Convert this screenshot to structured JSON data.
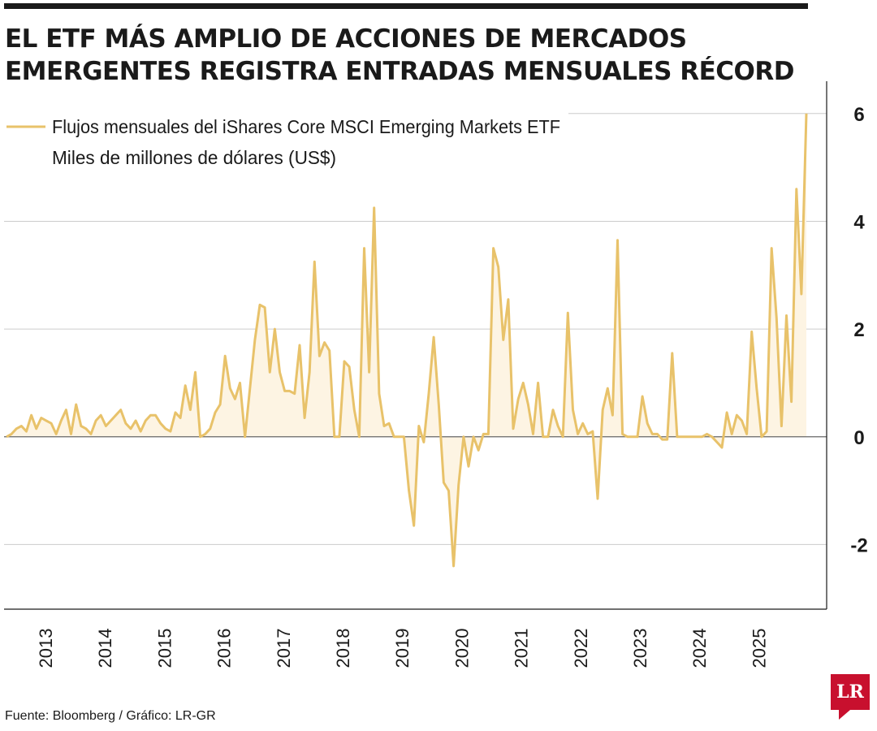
{
  "headline": {
    "line1": "EL ETF MÁS AMPLIO DE ACCIONES DE MERCADOS",
    "line2": "EMERGENTES REGISTRA ENTRADAS MENSUALES RÉCORD"
  },
  "source": "Fuente: Bloomberg / Gráfico: LR-GR",
  "logo": {
    "text": "LR"
  },
  "colors": {
    "series": "#e8c26a",
    "fill": "#fdf4e3",
    "grid": "#cccccc",
    "zero": "#666666",
    "text": "#1a1a1a",
    "brand": "#c8102e"
  },
  "chart_data": {
    "type": "area",
    "legend_position": "top-left",
    "grid": true,
    "ylim": [
      -3.2,
      6.6
    ],
    "y_ticks": [
      6,
      4,
      2,
      0,
      -2
    ],
    "y_tick_labels": [
      "6",
      "4",
      "2",
      "0",
      "-2"
    ],
    "x_tick_labels": [
      "2013",
      "2014",
      "2015",
      "2016",
      "2017",
      "2018",
      "2019",
      "2020",
      "2021",
      "2022",
      "2023",
      "2024",
      "2025"
    ],
    "series": [
      {
        "name": "Flujos mensuales del iShares Core MSCI Emerging Markets ETF",
        "unit_label": "Miles de millones de dólares (US$)",
        "start": "2012-10",
        "values": [
          0.0,
          0.05,
          0.15,
          0.2,
          0.1,
          0.4,
          0.15,
          0.35,
          0.3,
          0.25,
          0.05,
          0.3,
          0.5,
          0.05,
          0.6,
          0.2,
          0.15,
          0.05,
          0.3,
          0.4,
          0.2,
          0.3,
          0.4,
          0.5,
          0.25,
          0.15,
          0.3,
          0.1,
          0.3,
          0.4,
          0.4,
          0.25,
          0.15,
          0.1,
          0.45,
          0.35,
          0.95,
          0.5,
          1.2,
          0.0,
          0.05,
          0.15,
          0.45,
          0.6,
          1.5,
          0.9,
          0.7,
          1.0,
          0.0,
          0.9,
          1.8,
          2.45,
          2.4,
          1.2,
          2.0,
          1.2,
          0.85,
          0.85,
          0.8,
          1.7,
          0.35,
          1.2,
          3.25,
          1.5,
          1.75,
          1.6,
          0.0,
          0.0,
          1.4,
          1.3,
          0.5,
          0.0,
          3.5,
          1.2,
          4.25,
          0.8,
          0.2,
          0.25,
          0.0,
          0.0,
          0.0,
          -1.0,
          -1.65,
          0.2,
          -0.1,
          0.8,
          1.85,
          0.6,
          -0.85,
          -1.0,
          -2.4,
          -0.9,
          0.0,
          -0.55,
          0.0,
          -0.25,
          0.05,
          0.05,
          3.5,
          3.15,
          1.8,
          2.55,
          0.15,
          0.7,
          1.0,
          0.6,
          0.05,
          1.0,
          0.0,
          0.0,
          0.5,
          0.2,
          0.0,
          2.3,
          0.5,
          0.05,
          0.25,
          0.05,
          0.1,
          -1.15,
          0.5,
          0.9,
          0.4,
          3.65,
          0.05,
          0.0,
          0.0,
          0.0,
          0.75,
          0.25,
          0.05,
          0.05,
          -0.05,
          -0.05,
          1.55,
          0.0,
          0.0,
          0.0,
          0.0,
          0.0,
          0.0,
          0.05,
          0.0,
          -0.1,
          -0.2,
          0.45,
          0.05,
          0.4,
          0.3,
          0.05,
          1.95,
          0.9,
          0.0,
          0.1,
          3.5,
          2.2,
          0.2,
          2.25,
          0.65,
          4.6,
          2.65,
          6.0
        ]
      }
    ]
  }
}
